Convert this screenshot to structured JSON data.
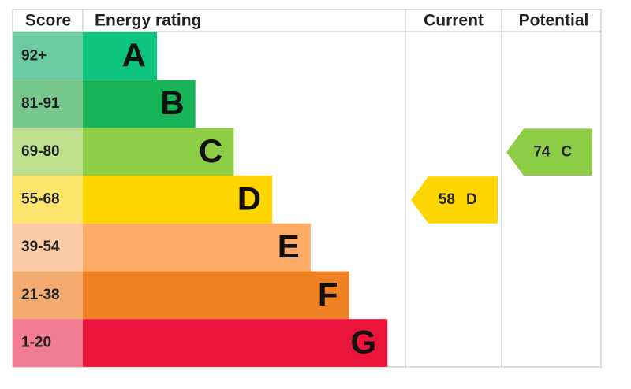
{
  "header": {
    "score": "Score",
    "energy_rating": "Energy rating",
    "current": "Current",
    "potential": "Potential"
  },
  "bands": [
    {
      "score": "92+",
      "letter": "A",
      "color": "#0dc47f",
      "score_color": "#6ccba0"
    },
    {
      "score": "81-91",
      "letter": "B",
      "color": "#19b459",
      "score_color": "#78c88e"
    },
    {
      "score": "69-80",
      "letter": "C",
      "color": "#8dce46",
      "score_color": "#bde08e"
    },
    {
      "score": "55-68",
      "letter": "D",
      "color": "#ffd500",
      "score_color": "#ffe56c"
    },
    {
      "score": "39-54",
      "letter": "E",
      "color": "#fcaa65",
      "score_color": "#fdcca4"
    },
    {
      "score": "21-38",
      "letter": "F",
      "color": "#ef8023",
      "score_color": "#f4ab70"
    },
    {
      "score": "1-20",
      "letter": "G",
      "color": "#e9153b",
      "score_color": "#f07b92"
    }
  ],
  "current": {
    "value": 58,
    "rating": "D"
  },
  "potential": {
    "value": 74,
    "rating": "C"
  }
}
